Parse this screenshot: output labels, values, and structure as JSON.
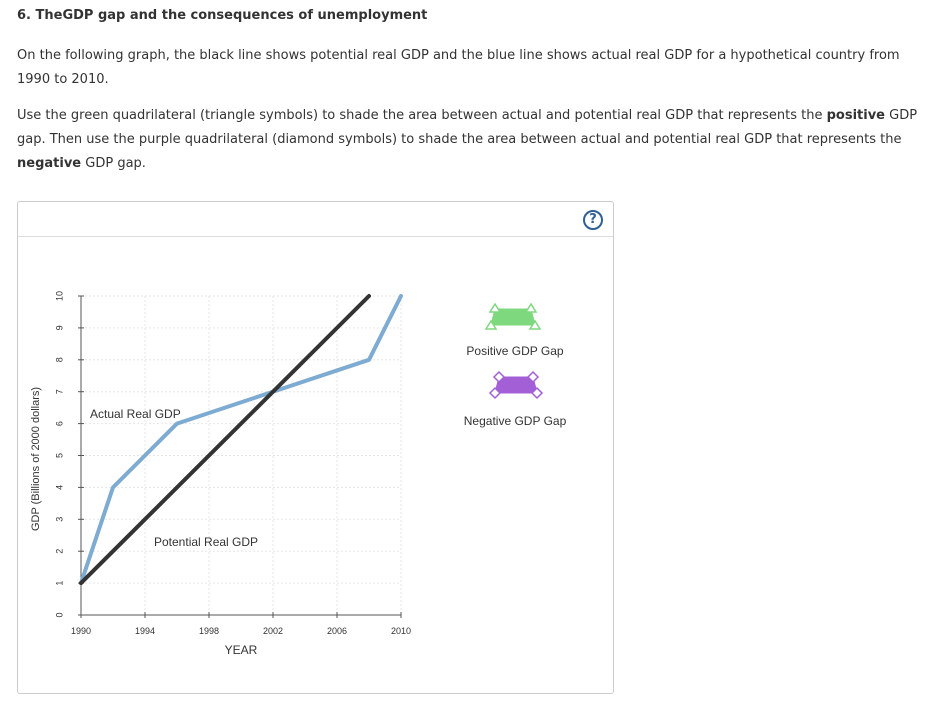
{
  "question": {
    "title": "6. TheGDP gap and the consequences of unemployment",
    "paragraph1": "On the following graph, the black line shows potential real GDP and the blue line shows actual real GDP for a hypothetical country from 1990 to 2010.",
    "p2_a": "Use the green quadrilateral (triangle symbols) to shade the area between actual and potential real GDP that represents the ",
    "p2_bold1": "positive",
    "p2_b": " GDP gap. Then use the purple quadrilateral (diamond symbols) to shade the area between actual and potential real GDP that represents the ",
    "p2_bold2": "negative",
    "p2_c": " GDP gap."
  },
  "help": {
    "label": "?"
  },
  "tools": {
    "positive_label": "Positive GDP Gap",
    "negative_label": "Negative GDP Gap",
    "positive_color": "#7ed87e",
    "negative_color": "#a35fd6"
  },
  "chart_data": {
    "type": "line",
    "xlabel": "YEAR",
    "ylabel": "GDP (Billions of 2000 dollars)",
    "xlim": [
      1990,
      2010
    ],
    "ylim": [
      0,
      10
    ],
    "xticks": [
      1990,
      1994,
      1998,
      2002,
      2006,
      2010
    ],
    "yticks": [
      0,
      1,
      2,
      3,
      4,
      5,
      6,
      7,
      8,
      9,
      10
    ],
    "grid": true,
    "series": [
      {
        "name": "Actual Real GDP",
        "color": "#7eabd2",
        "points": [
          [
            1990,
            1
          ],
          [
            1992,
            4
          ],
          [
            1996,
            6
          ],
          [
            2008,
            8
          ],
          [
            2010,
            10
          ]
        ]
      },
      {
        "name": "Potential Real GDP",
        "color": "#333333",
        "points": [
          [
            1990,
            1
          ],
          [
            2008,
            10
          ]
        ]
      }
    ]
  }
}
